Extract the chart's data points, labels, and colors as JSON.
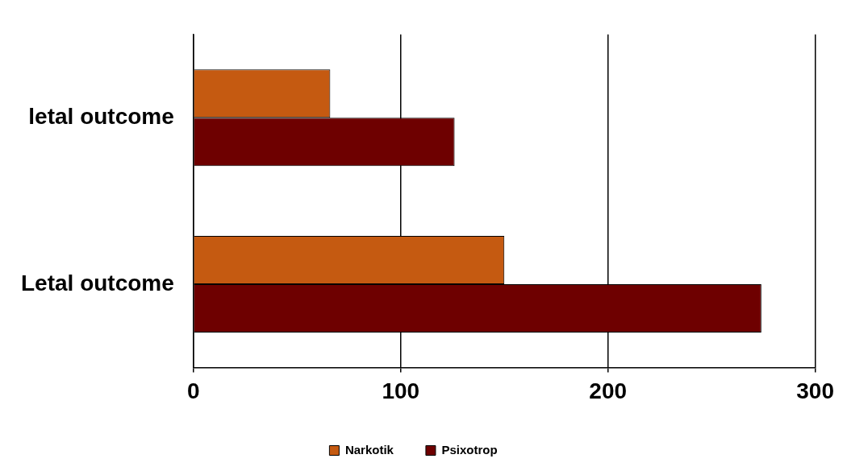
{
  "chart_data": {
    "type": "bar",
    "orientation": "horizontal",
    "categories": [
      "letal outcome",
      "Letal outcome"
    ],
    "series": [
      {
        "name": "Narkotik",
        "color": "#c55a11",
        "values": [
          66,
          150
        ]
      },
      {
        "name": "Psixotrop",
        "color": "#6e0000",
        "values": [
          126,
          274
        ]
      }
    ],
    "xlim": [
      0,
      300
    ],
    "xticks": [
      0,
      100,
      200,
      300
    ],
    "grid": "x",
    "legend": "bottom"
  }
}
